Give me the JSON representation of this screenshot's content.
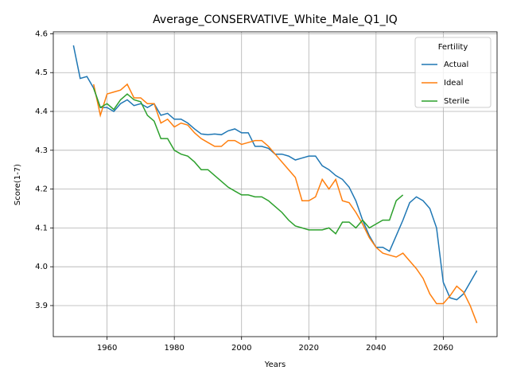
{
  "chart_data": {
    "type": "line",
    "title": "Average_CONSERVATIVE_White_Male_Q1_IQ",
    "xlabel": "Years",
    "ylabel": "Score(1-7)",
    "x": [
      1950,
      1952,
      1954,
      1956,
      1958,
      1960,
      1962,
      1964,
      1966,
      1968,
      1970,
      1972,
      1974,
      1976,
      1978,
      1980,
      1982,
      1984,
      1986,
      1988,
      1990,
      1992,
      1994,
      1996,
      1998,
      2000,
      2002,
      2004,
      2006,
      2008,
      2010,
      2012,
      2014,
      2016,
      2018,
      2020,
      2022,
      2024,
      2026,
      2028,
      2030,
      2032,
      2034,
      2036,
      2038,
      2040,
      2042,
      2044,
      2046,
      2048,
      2050,
      2052,
      2054,
      2056,
      2058,
      2060,
      2062,
      2064,
      2066,
      2068,
      2070
    ],
    "series": [
      {
        "name": "Actual",
        "color": "#1f77b4",
        "values": [
          4.57,
          4.485,
          4.49,
          4.46,
          4.41,
          4.41,
          4.4,
          4.42,
          4.43,
          4.415,
          4.42,
          4.41,
          4.42,
          4.39,
          4.395,
          4.38,
          4.38,
          4.37,
          4.355,
          4.342,
          4.34,
          4.342,
          4.34,
          4.35,
          4.355,
          4.345,
          4.345,
          4.31,
          4.31,
          4.305,
          4.29,
          4.29,
          4.285,
          4.275,
          4.28,
          4.285,
          4.285,
          4.26,
          4.25,
          4.235,
          4.225,
          4.205,
          4.17,
          4.12,
          4.08,
          4.05,
          4.05,
          4.04,
          4.08,
          4.12,
          4.165,
          4.18,
          4.17,
          4.15,
          4.1,
          3.96,
          3.92,
          3.915,
          3.93,
          3.96,
          3.99
        ]
      },
      {
        "name": "Ideal",
        "color": "#ff7f0e",
        "values": [
          null,
          null,
          null,
          4.47,
          4.39,
          4.445,
          4.45,
          4.455,
          4.47,
          4.435,
          4.435,
          4.42,
          4.42,
          4.37,
          4.38,
          4.36,
          4.37,
          4.365,
          4.345,
          4.33,
          4.32,
          4.31,
          4.31,
          4.325,
          4.325,
          4.315,
          4.32,
          4.325,
          4.325,
          4.31,
          4.29,
          4.27,
          4.25,
          4.23,
          4.17,
          4.17,
          4.18,
          4.225,
          4.2,
          4.225,
          4.17,
          4.165,
          4.14,
          4.11,
          4.075,
          4.05,
          4.035,
          4.03,
          4.025,
          4.035,
          4.015,
          3.995,
          3.97,
          3.93,
          3.905,
          3.905,
          3.925,
          3.95,
          3.935,
          3.9,
          3.855
        ]
      },
      {
        "name": "Sterile",
        "color": "#2ca02c",
        "values": [
          null,
          null,
          null,
          4.46,
          4.41,
          4.42,
          4.405,
          4.43,
          4.445,
          4.43,
          4.425,
          4.39,
          4.375,
          4.33,
          4.33,
          4.3,
          4.29,
          4.285,
          4.27,
          4.25,
          4.25,
          4.235,
          4.22,
          4.205,
          4.195,
          4.185,
          4.185,
          4.18,
          4.18,
          4.17,
          4.155,
          4.14,
          4.12,
          4.105,
          4.1,
          4.095,
          4.095,
          4.095,
          4.1,
          4.085,
          4.115,
          4.115,
          4.1,
          4.12,
          4.1,
          4.11,
          4.12,
          4.12,
          4.17,
          4.185,
          null,
          null,
          null,
          null,
          null,
          null,
          null,
          null,
          null,
          null,
          null
        ]
      }
    ],
    "xlim": [
      1944,
      2076
    ],
    "xticks": [
      1960,
      1980,
      2000,
      2020,
      2040,
      2060
    ],
    "ylim": [
      3.82,
      4.605
    ],
    "yticks": [
      3.9,
      {
        "value": 4,
        "label": "4.0"
      },
      4.1,
      4.2,
      4.3,
      4.4,
      4.5,
      4.6
    ],
    "grid": true,
    "legend_title": "Fertility",
    "legend_position": "upper right"
  }
}
